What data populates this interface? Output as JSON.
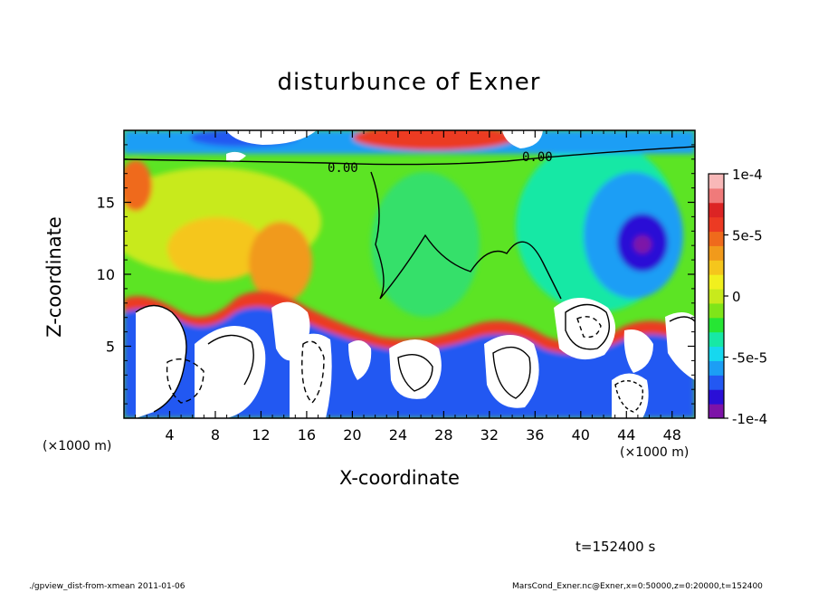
{
  "chart_data": {
    "type": "heatmap",
    "title": "disturbunce of Exner",
    "xlabel": "X-coordinate",
    "ylabel": "Z-coordinate",
    "x_unit_label": "(×1000 m)",
    "x_range": [
      0,
      50
    ],
    "y_range": [
      0,
      20
    ],
    "x_ticks": [
      4,
      8,
      12,
      16,
      20,
      24,
      28,
      32,
      36,
      40,
      44,
      48
    ],
    "y_ticks": [
      5,
      10,
      15
    ],
    "colorbar": {
      "range": [
        -0.0001,
        0.0001
      ],
      "tick_labels": [
        "1e-4",
        "5e-5",
        "0",
        "-5e-5",
        "-1e-4"
      ],
      "tick_values": [
        0.0001,
        5e-05,
        0,
        -5e-05,
        -0.0001
      ],
      "colors": [
        "#7d13a8",
        "#2a0fd6",
        "#2358f2",
        "#1c9ef5",
        "#16d8ef",
        "#17e8a5",
        "#26e634",
        "#7fe519",
        "#c8ea1c",
        "#f1f01e",
        "#f5c61c",
        "#f19a1b",
        "#ef6a1c",
        "#ec3a23",
        "#dc2424",
        "#f07a7a",
        "#f8b8b8"
      ]
    },
    "contour_labels": [
      "0.00",
      "0.00"
    ],
    "time_label": "t=152400 s"
  },
  "colors": {
    "axes": "#000000",
    "background": "#ffffff"
  },
  "footer": {
    "left": "./gpview_dist-from-xmean  2011-01-06",
    "right": "MarsCond_Exner.nc@Exner,x=0:50000,z=0:20000,t=152400"
  }
}
